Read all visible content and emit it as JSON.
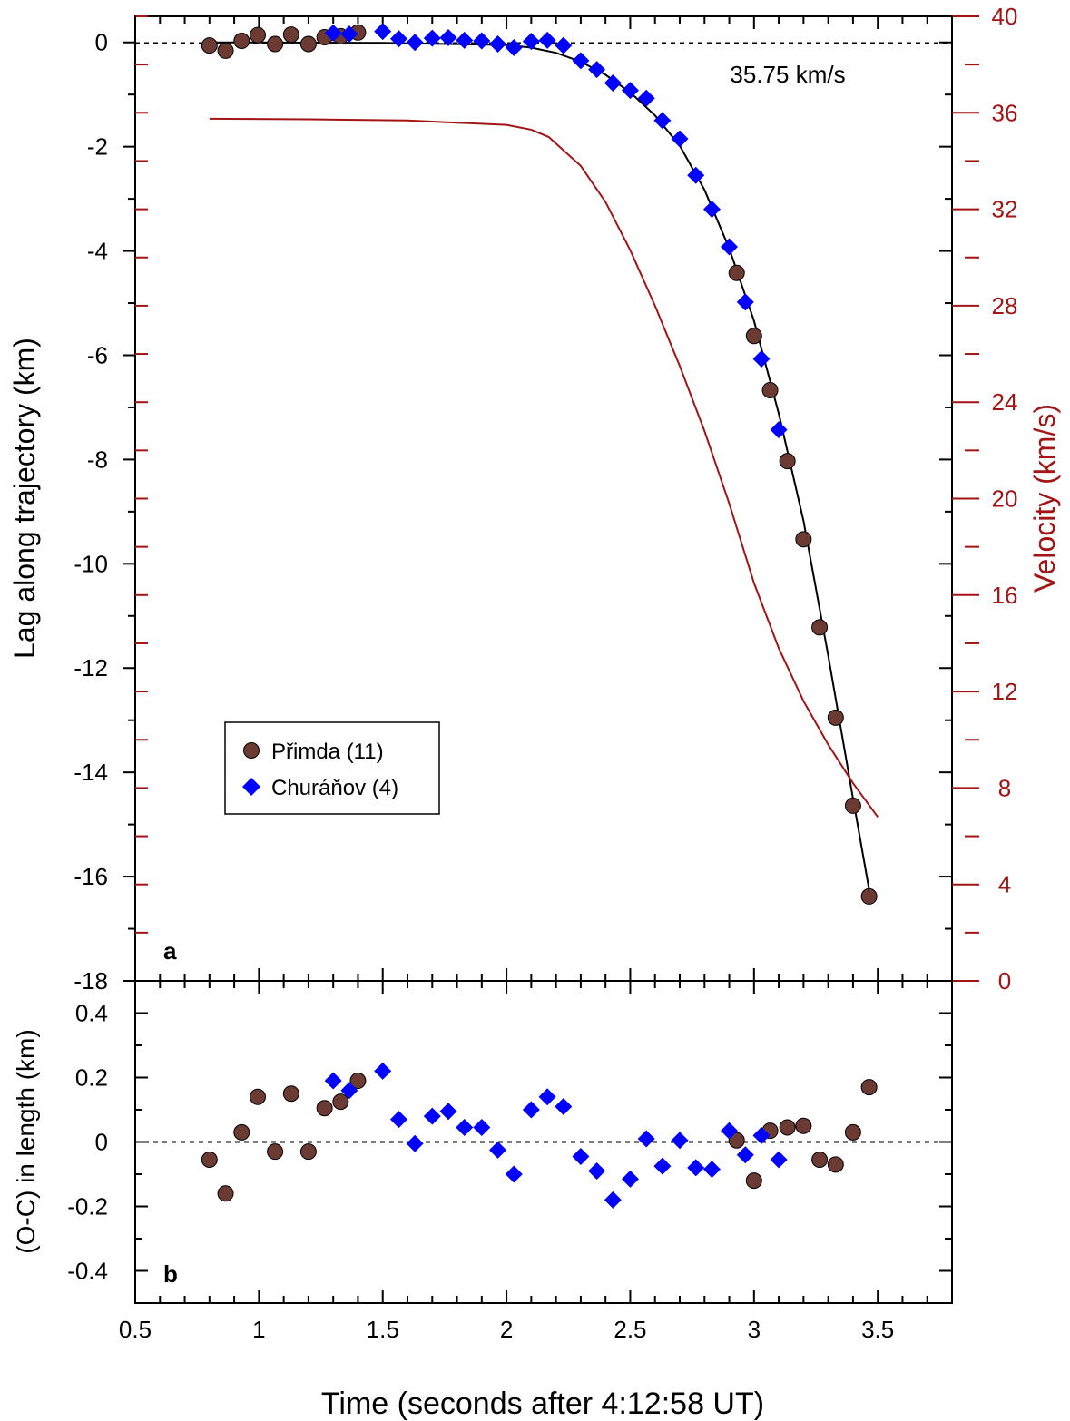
{
  "chart_data": [
    {
      "panel": "a",
      "type": "scatter",
      "panel_label": "a",
      "xlabel": "Time (seconds after 4:12:58 UT)",
      "ylabel": "Lag along trajectory (km)",
      "y2label": "Velocity (km/s)",
      "xlim": [
        0.5,
        3.8
      ],
      "ylim": [
        -18,
        0.5
      ],
      "y2lim": [
        0,
        40
      ],
      "x_ticks": [
        "0.5",
        "1",
        "1.5",
        "2",
        "2.5",
        "3",
        "3.5"
      ],
      "y_ticks": [
        "0",
        "-2",
        "-4",
        "-6",
        "-8",
        "-10",
        "-12",
        "-14",
        "-16",
        "-18"
      ],
      "y2_ticks": [
        "0",
        "4",
        "8",
        "12",
        "16",
        "20",
        "24",
        "28",
        "32",
        "36",
        "40"
      ],
      "annotation": "35.75 km/s",
      "legend": {
        "placement": "lower-left",
        "entries": [
          "Přimda (11)",
          "Churáňov (4)"
        ]
      },
      "series": [
        {
          "name": "Přimda (11)",
          "marker": "circle",
          "color": "#6b3a32",
          "x": [
            0.8,
            0.865,
            0.93,
            0.995,
            1.065,
            1.13,
            1.2,
            1.265,
            1.33,
            1.4,
            2.93,
            3.0,
            3.065,
            3.135,
            3.2,
            3.265,
            3.33,
            3.4,
            3.465
          ],
          "y": [
            -0.06,
            -0.16,
            0.03,
            0.14,
            -0.03,
            0.15,
            -0.03,
            0.1,
            0.12,
            0.19,
            -4.42,
            -5.63,
            -6.67,
            -8.03,
            -9.53,
            -11.22,
            -12.95,
            -14.64,
            -16.38
          ]
        },
        {
          "name": "Churáňov (4)",
          "marker": "diamond",
          "color": "#0000ff",
          "x": [
            1.3,
            1.365,
            1.5,
            1.565,
            1.63,
            1.7,
            1.765,
            1.83,
            1.9,
            1.965,
            2.03,
            2.1,
            2.165,
            2.23,
            2.3,
            2.365,
            2.43,
            2.5,
            2.565,
            2.63,
            2.7,
            2.765,
            2.83,
            2.9,
            2.965,
            3.03,
            3.1
          ],
          "y": [
            0.18,
            0.16,
            0.21,
            0.07,
            0.0,
            0.08,
            0.09,
            0.04,
            0.03,
            -0.03,
            -0.1,
            0.02,
            0.04,
            -0.06,
            -0.35,
            -0.52,
            -0.78,
            -0.92,
            -1.07,
            -1.5,
            -1.85,
            -2.55,
            -3.2,
            -3.92,
            -4.98,
            -6.07,
            -7.43
          ]
        },
        {
          "name": "Lag fit",
          "type": "line",
          "color": "#000000",
          "x": [
            0.8,
            1.0,
            1.5,
            2.0,
            2.1,
            2.2,
            2.3,
            2.4,
            2.5,
            2.6,
            2.7,
            2.8,
            2.9,
            3.0,
            3.1,
            3.2,
            3.3,
            3.4,
            3.47
          ],
          "y": [
            0.0,
            0.0,
            -0.01,
            -0.05,
            -0.1,
            -0.2,
            -0.37,
            -0.62,
            -0.96,
            -1.4,
            -1.98,
            -2.83,
            -3.95,
            -5.34,
            -7.12,
            -9.18,
            -11.76,
            -14.5,
            -16.38
          ]
        },
        {
          "name": "Velocity",
          "type": "line",
          "axis": "y2",
          "color": "#a31515",
          "x": [
            0.8,
            1.2,
            1.6,
            2.0,
            2.1,
            2.17,
            2.3,
            2.4,
            2.5,
            2.6,
            2.7,
            2.8,
            2.9,
            3.0,
            3.1,
            3.2,
            3.3,
            3.4,
            3.5
          ],
          "y": [
            35.75,
            35.73,
            35.68,
            35.5,
            35.3,
            35.0,
            33.8,
            32.3,
            30.3,
            28.0,
            25.5,
            22.8,
            19.8,
            16.5,
            13.8,
            11.6,
            9.8,
            8.2,
            6.8
          ]
        }
      ]
    },
    {
      "panel": "b",
      "type": "scatter",
      "panel_label": "b",
      "xlabel": "Time (seconds after 4:12:58 UT)",
      "ylabel": "(O-C) in length (km)",
      "xlim": [
        0.5,
        3.8
      ],
      "ylim": [
        -0.5,
        0.5
      ],
      "y_ticks": [
        "0.4",
        "0.2",
        "0",
        "-0.2",
        "-0.4"
      ],
      "series": [
        {
          "name": "Přimda (11)",
          "marker": "circle",
          "color": "#6b3a32",
          "x": [
            0.8,
            0.865,
            0.93,
            0.995,
            1.065,
            1.13,
            1.2,
            1.265,
            1.33,
            1.4,
            2.93,
            3.0,
            3.065,
            3.135,
            3.2,
            3.265,
            3.33,
            3.4,
            3.465
          ],
          "y": [
            -0.055,
            -0.16,
            0.03,
            0.14,
            -0.03,
            0.15,
            -0.03,
            0.105,
            0.125,
            0.19,
            0.005,
            -0.12,
            0.035,
            0.045,
            0.05,
            -0.055,
            -0.07,
            0.03,
            0.17
          ]
        },
        {
          "name": "Churáňov (4)",
          "marker": "diamond",
          "color": "#0000ff",
          "x": [
            1.3,
            1.365,
            1.5,
            1.565,
            1.63,
            1.7,
            1.765,
            1.83,
            1.9,
            1.965,
            2.03,
            2.1,
            2.165,
            2.23,
            2.3,
            2.365,
            2.43,
            2.5,
            2.565,
            2.63,
            2.7,
            2.765,
            2.83,
            2.9,
            2.965,
            3.03,
            3.1
          ],
          "y": [
            0.19,
            0.16,
            0.22,
            0.07,
            -0.005,
            0.08,
            0.095,
            0.045,
            0.045,
            -0.025,
            -0.1,
            0.1,
            0.14,
            0.11,
            -0.045,
            -0.09,
            -0.18,
            -0.115,
            0.01,
            -0.075,
            0.005,
            -0.08,
            -0.085,
            0.035,
            -0.04,
            0.02,
            -0.055
          ]
        }
      ]
    }
  ]
}
